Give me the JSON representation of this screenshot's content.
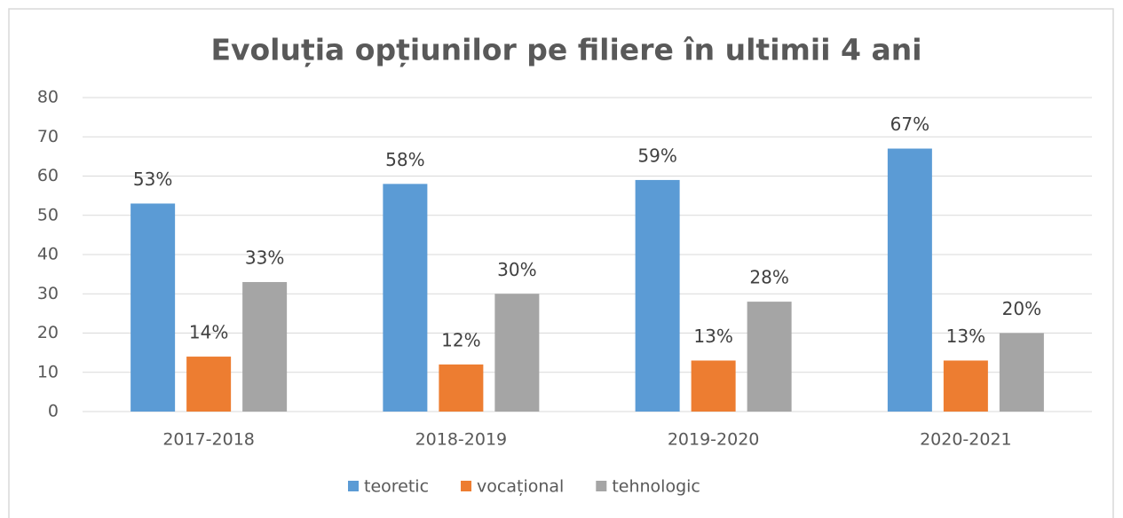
{
  "chart_data": {
    "type": "bar",
    "title": "Evoluția opțiunilor pe filiere în ultimii 4 ani",
    "categories": [
      "2017-2018",
      "2018-2019",
      "2019-2020",
      "2020-2021"
    ],
    "series": [
      {
        "name": "teoretic",
        "color": "#5b9bd5",
        "values": [
          53,
          58,
          59,
          67
        ],
        "value_labels": [
          "53%",
          "58%",
          "59%",
          "67%"
        ]
      },
      {
        "name": "vocațional",
        "color": "#ed7d31",
        "values": [
          14,
          12,
          13,
          13
        ],
        "value_labels": [
          "14%",
          "12%",
          "13%",
          "13%"
        ]
      },
      {
        "name": "tehnologic",
        "color": "#a5a5a5",
        "values": [
          33,
          30,
          28,
          20
        ],
        "value_labels": [
          "33%",
          "30%",
          "28%",
          "20%"
        ]
      }
    ],
    "ylim": [
      0,
      80
    ],
    "yticks": [
      0,
      10,
      20,
      30,
      40,
      50,
      60,
      70,
      80
    ],
    "grid": true,
    "legend": "bottom"
  }
}
